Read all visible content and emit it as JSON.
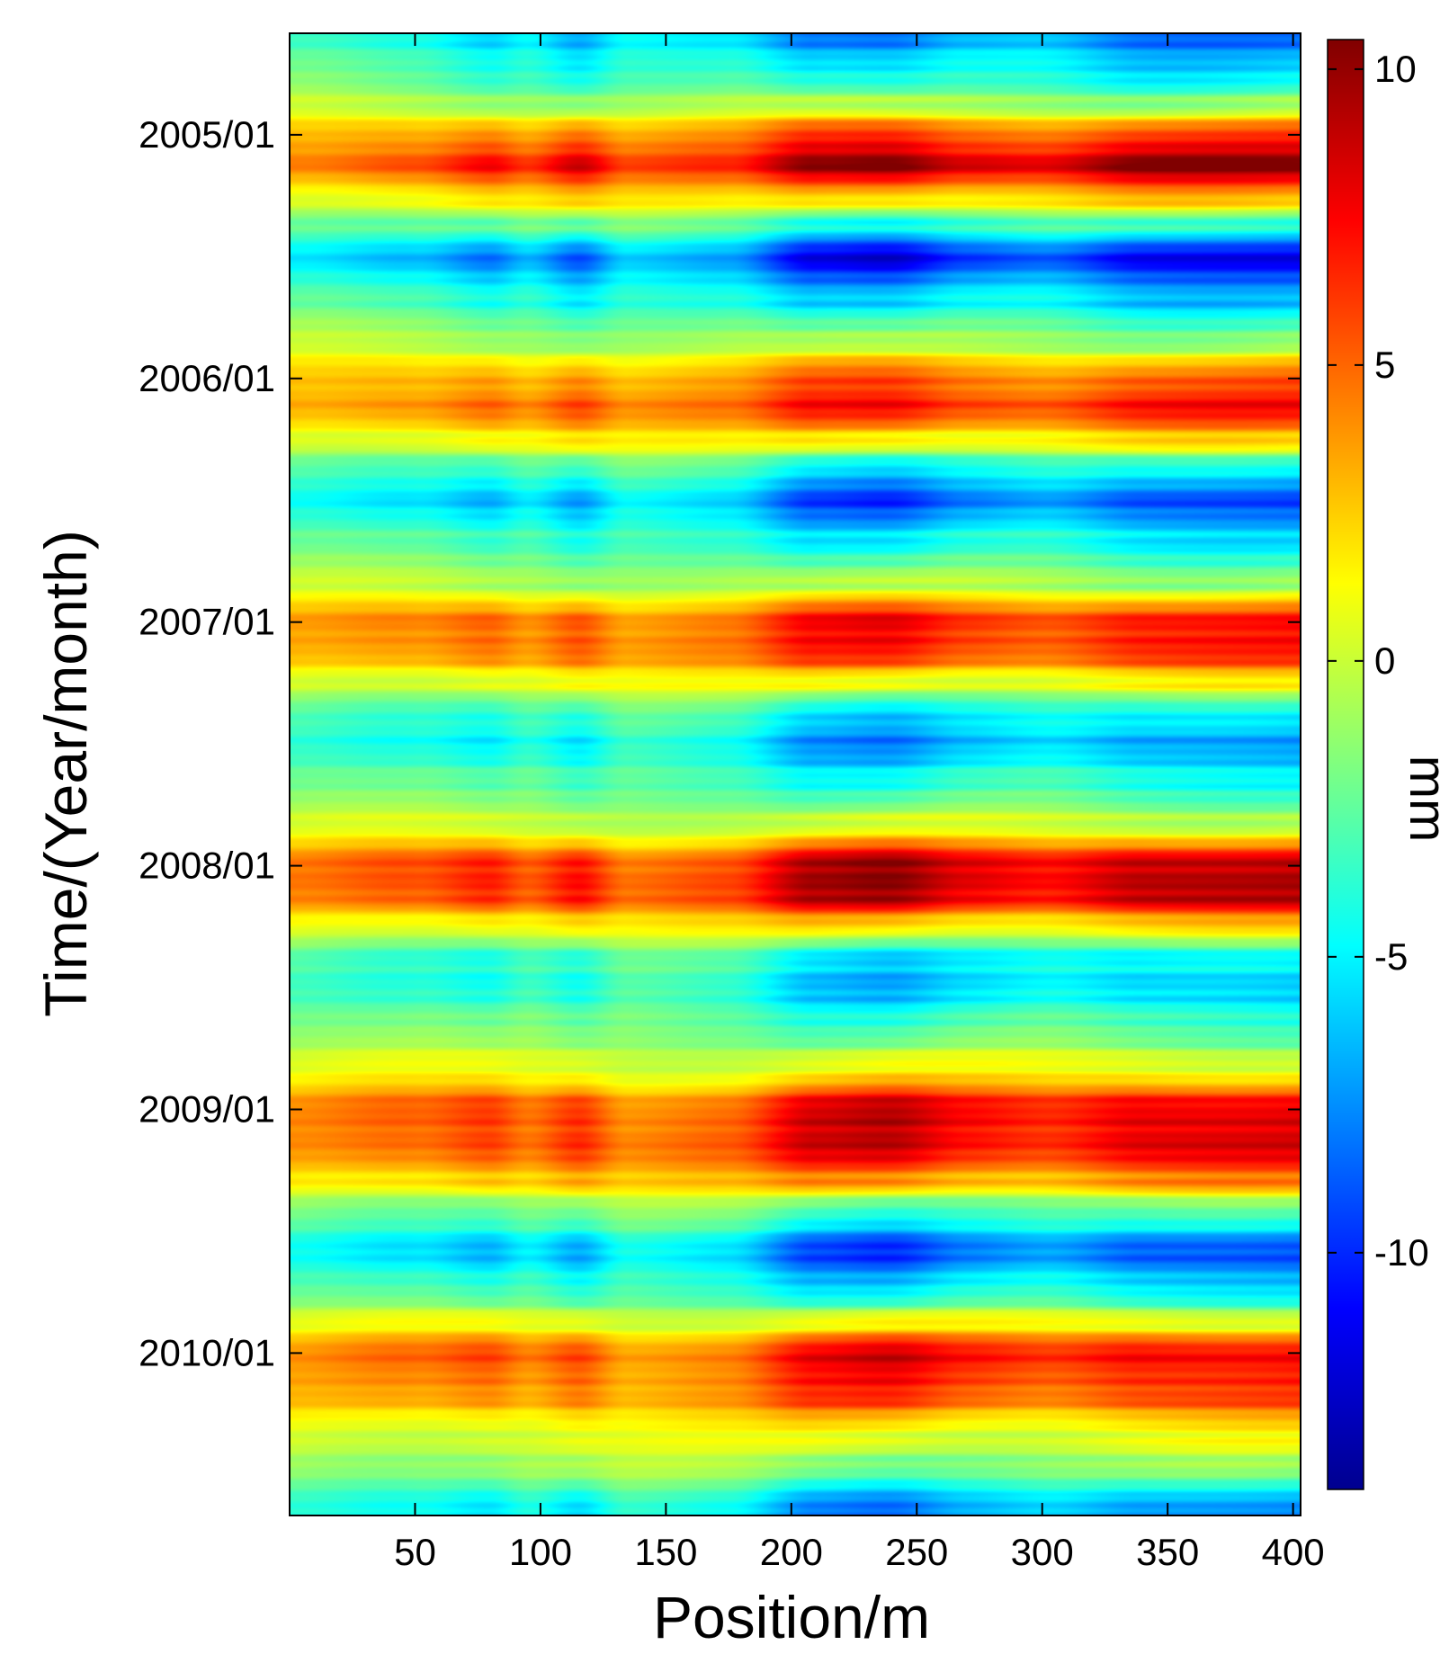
{
  "chart_data": {
    "type": "heatmap",
    "title": "",
    "xlabel": "Position/m",
    "ylabel": "Time/(Year/month)",
    "xlim": [
      0,
      403
    ],
    "ylim_months": [
      0,
      73
    ],
    "x_ticks": [
      50,
      100,
      150,
      200,
      250,
      300,
      350,
      400
    ],
    "x_tick_labels": [
      "50",
      "100",
      "150",
      "200",
      "250",
      "300",
      "350",
      "400"
    ],
    "y_ticks": [
      {
        "label": "2005/01",
        "month_index": 5
      },
      {
        "label": "2006/01",
        "month_index": 17
      },
      {
        "label": "2007/01",
        "month_index": 29
      },
      {
        "label": "2008/01",
        "month_index": 41
      },
      {
        "label": "2009/01",
        "month_index": 53
      },
      {
        "label": "2010/01",
        "month_index": 65
      }
    ],
    "colorbar": {
      "label": "mm",
      "min": -14,
      "max": 10.5,
      "colormap": "jet",
      "ticks": [
        10,
        5,
        0,
        -5,
        -10
      ],
      "tick_labels": [
        "10",
        "5",
        "0",
        "-5",
        "-10"
      ]
    },
    "temporal_profile": [
      {
        "month": 0,
        "value": -8
      },
      {
        "month": 2,
        "value": -5
      },
      {
        "month": 3.5,
        "value": -1
      },
      {
        "month": 5,
        "value": 6
      },
      {
        "month": 6.5,
        "value": 10
      },
      {
        "month": 8,
        "value": 3
      },
      {
        "month": 9.5,
        "value": -4
      },
      {
        "month": 11,
        "value": -11
      },
      {
        "month": 13,
        "value": -6
      },
      {
        "month": 15,
        "value": -1.5
      },
      {
        "month": 17,
        "value": 5
      },
      {
        "month": 18.5,
        "value": 7
      },
      {
        "month": 20,
        "value": 2
      },
      {
        "month": 21.5,
        "value": -5
      },
      {
        "month": 23,
        "value": -9
      },
      {
        "month": 25,
        "value": -5
      },
      {
        "month": 27,
        "value": -1
      },
      {
        "month": 29,
        "value": 7
      },
      {
        "month": 30.5,
        "value": 6.5
      },
      {
        "month": 32,
        "value": 1
      },
      {
        "month": 33.5,
        "value": -5
      },
      {
        "month": 35,
        "value": -7
      },
      {
        "month": 37,
        "value": -4
      },
      {
        "month": 39,
        "value": 0
      },
      {
        "month": 41,
        "value": 9
      },
      {
        "month": 42.5,
        "value": 9
      },
      {
        "month": 44,
        "value": 2
      },
      {
        "month": 45.5,
        "value": -5
      },
      {
        "month": 47,
        "value": -6
      },
      {
        "month": 49,
        "value": -3
      },
      {
        "month": 51,
        "value": 1
      },
      {
        "month": 53,
        "value": 8
      },
      {
        "month": 55,
        "value": 8
      },
      {
        "month": 56.5,
        "value": 4
      },
      {
        "month": 58,
        "value": -3
      },
      {
        "month": 60,
        "value": -9
      },
      {
        "month": 62,
        "value": -5
      },
      {
        "month": 63.5,
        "value": 1
      },
      {
        "month": 65,
        "value": 7.5
      },
      {
        "month": 67,
        "value": 6
      },
      {
        "month": 69,
        "value": 1
      },
      {
        "month": 71,
        "value": -2
      },
      {
        "month": 72,
        "value": -6
      },
      {
        "month": 73,
        "value": -8
      }
    ],
    "spatial_amplitude": [
      {
        "position": 0,
        "factor": 0.45
      },
      {
        "position": 50,
        "factor": 0.62
      },
      {
        "position": 80,
        "factor": 0.8
      },
      {
        "position": 95,
        "factor": 0.65
      },
      {
        "position": 115,
        "factor": 0.85
      },
      {
        "position": 135,
        "factor": 0.55
      },
      {
        "position": 175,
        "factor": 0.6
      },
      {
        "position": 210,
        "factor": 1.0
      },
      {
        "position": 240,
        "factor": 1.08
      },
      {
        "position": 270,
        "factor": 0.9
      },
      {
        "position": 300,
        "factor": 0.85
      },
      {
        "position": 340,
        "factor": 1.05
      },
      {
        "position": 403,
        "factor": 1.0
      }
    ]
  }
}
